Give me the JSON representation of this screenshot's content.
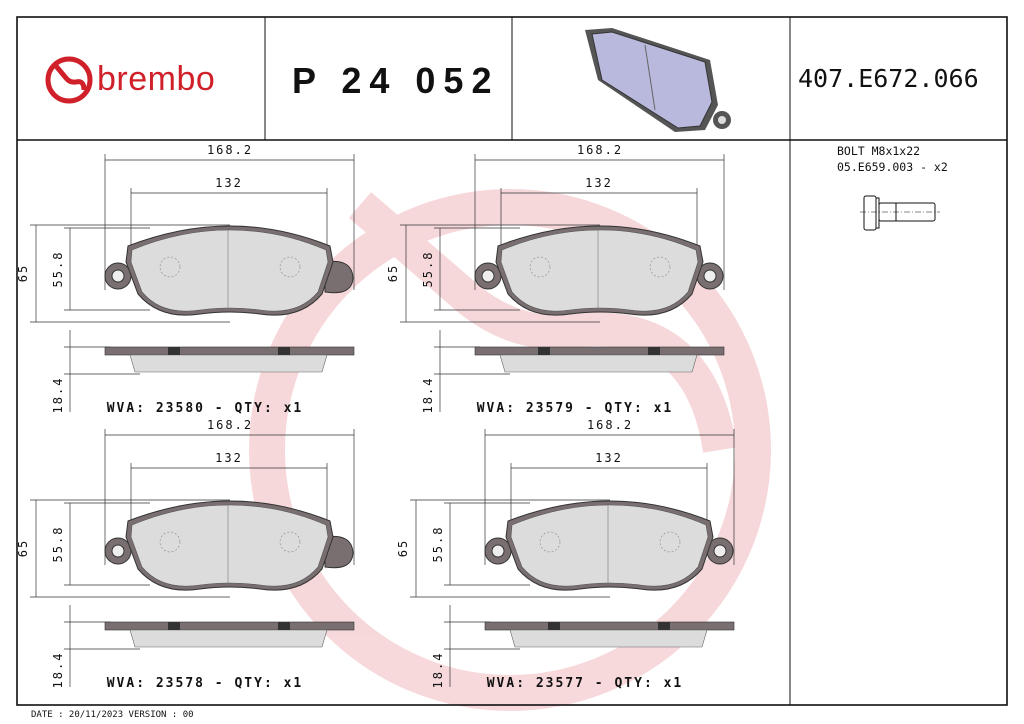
{
  "header": {
    "brand": "brembo",
    "part_number": "P 24 052",
    "reference_code": "407.E672.066"
  },
  "accessory": {
    "line1": "BOLT M8x1x22",
    "line2": "05.E659.003 - x2"
  },
  "pads": [
    {
      "width_total": "168.2",
      "width_inner": "132",
      "height_total": "65",
      "height_inner": "55.8",
      "thickness": "18.4",
      "label": "WVA: 23580 - QTY: x1",
      "right_ear": "lobe"
    },
    {
      "width_total": "168.2",
      "width_inner": "132",
      "height_total": "65",
      "height_inner": "55.8",
      "thickness": "18.4",
      "label": "WVA: 23579 - QTY: x1",
      "right_ear": "ring"
    },
    {
      "width_total": "168.2",
      "width_inner": "132",
      "height_total": "65",
      "height_inner": "55.8",
      "thickness": "18.4",
      "label": "WVA: 23578 - QTY: x1",
      "right_ear": "lobe"
    },
    {
      "width_total": "168.2",
      "width_inner": "132",
      "height_total": "65",
      "height_inner": "55.8",
      "thickness": "18.4",
      "label": "WVA: 23577 - QTY: x1",
      "right_ear": "ring"
    }
  ],
  "footer": {
    "text": "DATE : 20/11/2023 VERSION : 00"
  },
  "colors": {
    "brand_red": "#d0202a",
    "watermark": "#f3c9cc",
    "pad_fill": "#dcdcdc",
    "backplate": "#7a6f70"
  }
}
